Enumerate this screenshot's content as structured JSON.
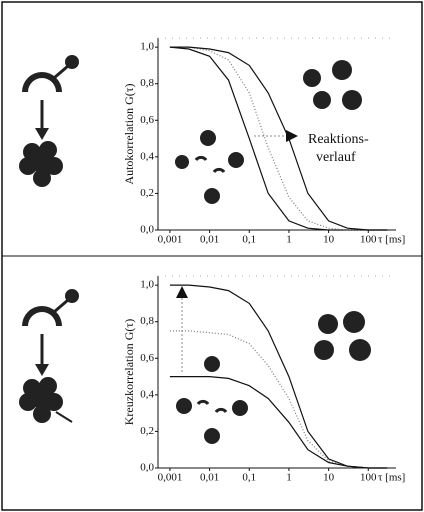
{
  "chart_data": [
    {
      "type": "line",
      "ylabel": "Autokorrelation G(τ)",
      "xlabel": "τ [ms]",
      "xscale": "log",
      "annotation": [
        "Reaktions-",
        "verlauf"
      ],
      "x": [
        0.001,
        0.003,
        0.01,
        0.03,
        0.1,
        0.3,
        1,
        3,
        10,
        30,
        100,
        300
      ],
      "series": [
        {
          "color": "#111111",
          "values": [
            1.0,
            0.99,
            0.95,
            0.82,
            0.5,
            0.2,
            0.05,
            0.01,
            0.0,
            0.0,
            0.0,
            0.0
          ]
        },
        {
          "color": "#777777",
          "values": [
            1.0,
            1.0,
            0.98,
            0.93,
            0.75,
            0.45,
            0.18,
            0.05,
            0.01,
            0.0,
            0.0,
            0.0
          ]
        },
        {
          "color": "#111111",
          "values": [
            1.0,
            1.0,
            0.99,
            0.97,
            0.9,
            0.75,
            0.5,
            0.2,
            0.05,
            0.01,
            0.0,
            0.0
          ]
        }
      ],
      "xlim": [
        0.0005,
        500
      ],
      "ylim": [
        0,
        1.05
      ],
      "xticks": [
        {
          "value": 0.001,
          "label": "0,001"
        },
        {
          "value": 0.01,
          "label": "0,01"
        },
        {
          "value": 0.1,
          "label": "0,1"
        },
        1,
        10,
        100
      ],
      "yticks": [
        {
          "value": 0,
          "label": "0,0"
        },
        {
          "value": 0.2,
          "label": "0,2"
        },
        {
          "value": 0.4,
          "label": "0,4"
        },
        {
          "value": 0.6,
          "label": "0,6"
        },
        {
          "value": 0.8,
          "label": "0,8"
        },
        {
          "value": 1,
          "label": "1,0"
        }
      ]
    },
    {
      "type": "line",
      "ylabel": "Kreuzkorrelation G(τ)",
      "xlabel": "τ [ms]",
      "xscale": "log",
      "x": [
        0.001,
        0.003,
        0.01,
        0.03,
        0.1,
        0.3,
        1,
        3,
        10,
        30,
        100,
        300
      ],
      "series": [
        {
          "color": "#111111",
          "values": [
            1.0,
            1.0,
            0.99,
            0.97,
            0.9,
            0.75,
            0.5,
            0.2,
            0.05,
            0.01,
            0.0,
            0.0
          ]
        },
        {
          "color": "#777777",
          "values": [
            0.75,
            0.75,
            0.74,
            0.73,
            0.68,
            0.56,
            0.38,
            0.15,
            0.04,
            0.01,
            0.0,
            0.0
          ]
        },
        {
          "color": "#111111",
          "values": [
            0.5,
            0.5,
            0.5,
            0.49,
            0.45,
            0.38,
            0.25,
            0.1,
            0.03,
            0.01,
            0.0,
            0.0
          ]
        }
      ],
      "xlim": [
        0.0005,
        500
      ],
      "ylim": [
        0,
        1.05
      ],
      "xticks": [
        {
          "value": 0.001,
          "label": "0,001"
        },
        {
          "value": 0.01,
          "label": "0,01"
        },
        {
          "value": 0.1,
          "label": "0,1"
        },
        1,
        10,
        100
      ],
      "yticks": [
        {
          "value": 0,
          "label": "0,0"
        },
        {
          "value": 0.2,
          "label": "0,2"
        },
        {
          "value": 0.4,
          "label": "0,4"
        },
        {
          "value": 0.6,
          "label": "0,6"
        },
        {
          "value": 0.8,
          "label": "0,8"
        },
        {
          "value": 1,
          "label": "1,0"
        }
      ]
    }
  ]
}
